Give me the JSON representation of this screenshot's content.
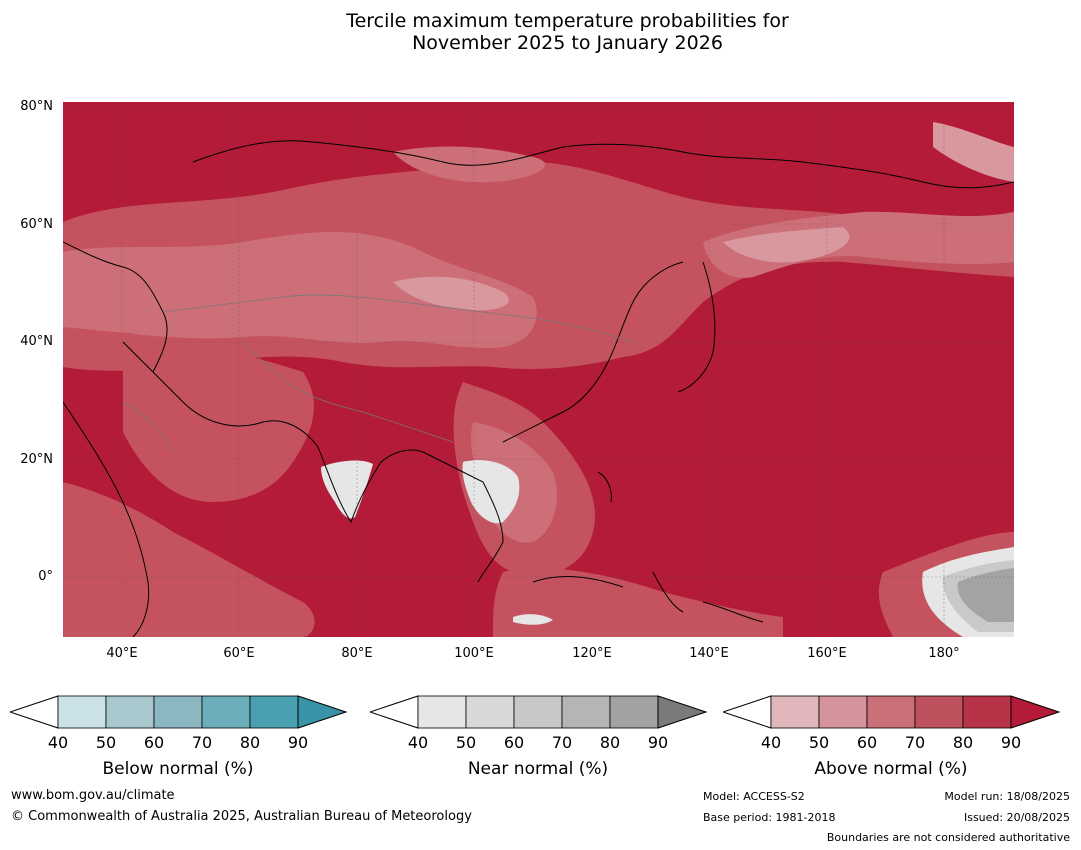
{
  "title_line1": "Tercile maximum temperature probabilities for",
  "title_line2": "November 2025 to January 2026",
  "map": {
    "lat_labels": [
      "80°N",
      "60°N",
      "40°N",
      "20°N",
      "0°"
    ],
    "lon_labels": [
      "40°E",
      "60°E",
      "80°E",
      "100°E",
      "120°E",
      "140°E",
      "160°E",
      "180°"
    ],
    "lon_range": [
      30,
      192
    ],
    "lat_range": [
      -10,
      81
    ],
    "dominant_category": "Above normal",
    "colors": {
      "above_90": "#b31b38",
      "above_80": "#b83248",
      "above_70": "#c4535f",
      "above_60": "#cd6f78",
      "above_50": "#d9979e",
      "above_40": "#e4b8bd",
      "near_40": "#e6e6e6",
      "near_60": "#c9c9c9",
      "near_80": "#a3a3a3"
    }
  },
  "colorbars": [
    {
      "name": "below",
      "label": "Below normal (%)",
      "ticks": [
        "40",
        "50",
        "60",
        "70",
        "80",
        "90"
      ],
      "colors": [
        "#c9e1e7",
        "#a8c7cf",
        "#8bb7c2",
        "#6badb9",
        "#4aa0b0"
      ],
      "arrow_color": "#3a93a8"
    },
    {
      "name": "near",
      "label": "Near normal (%)",
      "ticks": [
        "40",
        "50",
        "60",
        "70",
        "80",
        "90"
      ],
      "colors": [
        "#e6e6e6",
        "#d8d8d8",
        "#c8c8c8",
        "#b5b5b5",
        "#a2a2a2"
      ],
      "arrow_color": "#7b7b7b"
    },
    {
      "name": "above",
      "label": "Above normal (%)",
      "ticks": [
        "40",
        "50",
        "60",
        "70",
        "80",
        "90"
      ],
      "colors": [
        "#e0b6bb",
        "#d5939b",
        "#c97079",
        "#bf505e",
        "#b73348"
      ],
      "arrow_color": "#b31b38"
    }
  ],
  "footer": {
    "website": "www.bom.gov.au/climate",
    "copyright": "© Commonwealth of Australia 2025, Australian Bureau of Meteorology",
    "model": "Model: ACCESS-S2",
    "base_period": "Base period: 1981-2018",
    "model_run": "Model run: 18/08/2025",
    "issued": "Issued: 20/08/2025",
    "disclaimer": "Boundaries are not considered authoritative"
  }
}
